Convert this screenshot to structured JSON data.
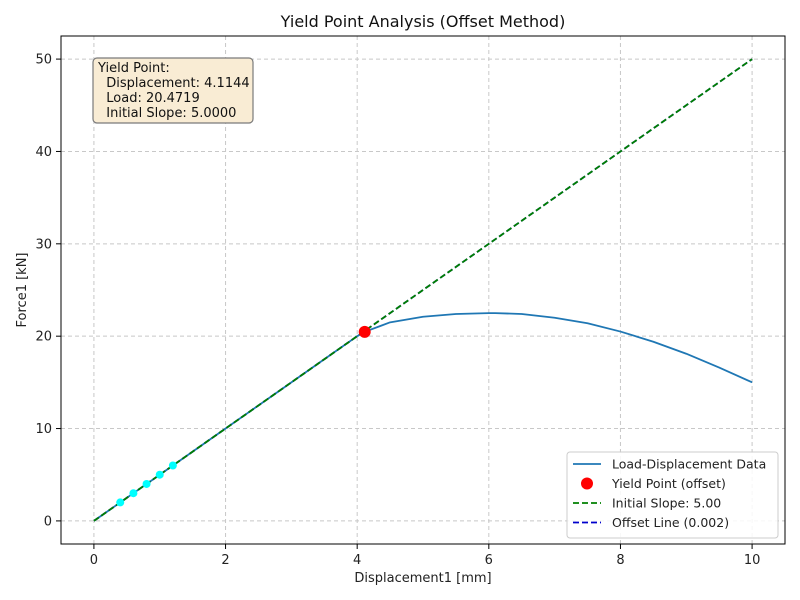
{
  "chart_data": {
    "type": "line",
    "title": "Yield Point Analysis (Offset Method)",
    "xlabel": "Displacement1 [mm]",
    "ylabel": "Force1 [kN]",
    "xlim": [
      -0.5,
      10.5
    ],
    "ylim": [
      -2.5,
      52.5
    ],
    "xticks": [
      0,
      2,
      4,
      6,
      8,
      10
    ],
    "yticks": [
      0,
      10,
      20,
      30,
      40,
      50
    ],
    "grid": true,
    "legend_position": "lower-right",
    "series": [
      {
        "name": "Load-Displacement Data",
        "kind": "line",
        "color": "#1f77b4",
        "x": [
          0,
          0.4,
          0.8,
          1.2,
          1.6,
          2.0,
          2.4,
          2.8,
          3.2,
          3.6,
          4.0,
          4.1144,
          4.5,
          5.0,
          5.5,
          6.0,
          6.1,
          6.5,
          7.0,
          7.5,
          8.0,
          8.5,
          9.0,
          9.5,
          10.0
        ],
        "y": [
          0,
          2.0,
          4.0,
          6.0,
          8.0,
          10.0,
          12.0,
          14.0,
          16.0,
          18.0,
          20.0,
          20.4719,
          21.5,
          22.1,
          22.4,
          22.5,
          22.5,
          22.4,
          22.0,
          21.4,
          20.5,
          19.4,
          18.1,
          16.6,
          15.0
        ]
      },
      {
        "name": "Yield Point (offset)",
        "kind": "point",
        "color": "#ff0000",
        "x": [
          4.1144
        ],
        "y": [
          20.4719
        ]
      },
      {
        "name": "Initial Slope: 5.00",
        "kind": "dashed-line",
        "color": "#008000",
        "x": [
          0,
          10
        ],
        "y": [
          0,
          50
        ]
      },
      {
        "name": "Offset Line (0.002)",
        "kind": "dashed-line",
        "color": "#0000cc",
        "x": [
          0,
          10
        ],
        "y": [
          0,
          50
        ]
      },
      {
        "name": "",
        "kind": "markers",
        "color": "#00ffff",
        "x": [
          0.4,
          0.6,
          0.8,
          1.0,
          1.2
        ],
        "y": [
          2.0,
          3.0,
          4.0,
          5.0,
          6.0
        ]
      }
    ],
    "annotation": {
      "lines": [
        "Yield Point:",
        "  Displacement: 4.1144",
        "  Load: 20.4719",
        "  Initial Slope: 5.0000"
      ]
    }
  }
}
